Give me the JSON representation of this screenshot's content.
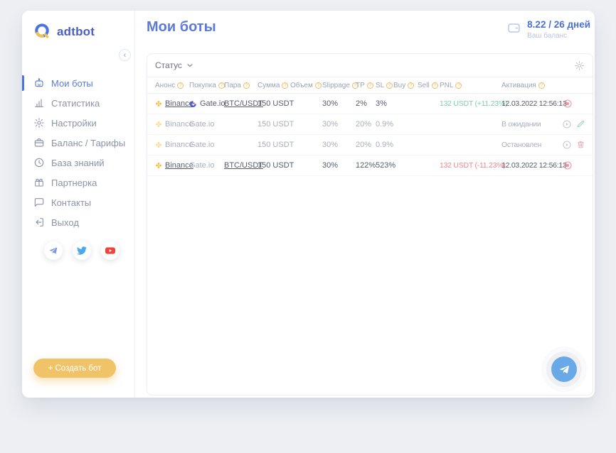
{
  "sidebar": {
    "logo_text": "adtbot",
    "items": [
      {
        "id": "my-bots",
        "label": "Мои боты",
        "icon": "bot-icon",
        "active": true
      },
      {
        "id": "statistics",
        "label": "Статистика",
        "icon": "chart-icon",
        "active": false
      },
      {
        "id": "settings",
        "label": "Настройки",
        "icon": "gear-icon",
        "active": false
      },
      {
        "id": "balance-tariffs",
        "label": "Баланс / Тарифы",
        "icon": "wallet-icon",
        "active": false
      },
      {
        "id": "knowledge-base",
        "label": "База знаний",
        "icon": "clock-icon",
        "active": false
      },
      {
        "id": "partnership",
        "label": "Партнерка",
        "icon": "gift-icon",
        "active": false
      },
      {
        "id": "contacts",
        "label": "Контакты",
        "icon": "chat-icon",
        "active": false
      },
      {
        "id": "logout",
        "label": "Выход",
        "icon": "logout-icon",
        "active": false
      }
    ],
    "socials": [
      {
        "id": "telegram",
        "icon": "telegram-icon",
        "color": "#8095e0"
      },
      {
        "id": "twitter",
        "icon": "twitter-icon",
        "color": "#4da7ea"
      },
      {
        "id": "youtube",
        "icon": "youtube-icon",
        "color": "#f0433c"
      }
    ],
    "create_button_label": "+ Создать бот"
  },
  "header": {
    "title": "Мои боты",
    "balance_value": "8.22 / 26 дней",
    "balance_label": "Ваш баланс"
  },
  "table": {
    "filter_label": "Статус",
    "columns": [
      "Анонс",
      "Покупка",
      "Пара",
      "Сумма",
      "Объем",
      "Slippage",
      "TP",
      "SL",
      "Buy",
      "Sell",
      "PNL",
      "Активация"
    ],
    "rows": [
      {
        "announce": "Binance",
        "announce_logo": "binance-icon",
        "announce_underline": true,
        "purchase": "Gate.io",
        "purchase_logo": "gateio-icon",
        "purchase_muted": false,
        "pair": "BTC/USDT",
        "pair_underline": true,
        "amount": "150 USDT",
        "volume": "",
        "slippage": "30%",
        "tp": "2%",
        "sl": "3%",
        "buy": "",
        "sell": "",
        "pnl": "132 USDT (+11.23%)",
        "pnl_status": "positive",
        "activation": "12.03.2022 12:56:13",
        "actions": [
          "stop"
        ],
        "muted": false
      },
      {
        "announce": "Binance",
        "announce_logo": "binance-icon",
        "announce_underline": false,
        "purchase": "Gate.io",
        "purchase_logo": null,
        "purchase_muted": true,
        "pair": "",
        "pair_underline": false,
        "amount": "150 USDT",
        "volume": "",
        "slippage": "30%",
        "tp": "20%",
        "sl": "0.9%",
        "buy": "",
        "sell": "",
        "pnl": "",
        "pnl_status": "none",
        "activation": "В ожидании",
        "actions": [
          "play",
          "edit"
        ],
        "muted": true
      },
      {
        "announce": "Binance",
        "announce_logo": "binance-icon",
        "announce_underline": false,
        "purchase": "Gate.io",
        "purchase_logo": null,
        "purchase_muted": true,
        "pair": "",
        "pair_underline": false,
        "amount": "150 USDT",
        "volume": "",
        "slippage": "30%",
        "tp": "20%",
        "sl": "0.9%",
        "buy": "",
        "sell": "",
        "pnl": "",
        "pnl_status": "none",
        "activation": "Остановлен",
        "actions": [
          "play",
          "delete"
        ],
        "muted": true
      },
      {
        "announce": "Binance",
        "announce_logo": "binance-icon",
        "announce_underline": true,
        "purchase": "Gate.io",
        "purchase_logo": null,
        "purchase_muted": true,
        "pair": "BTC/USDT",
        "pair_underline": true,
        "amount": "150 USDT",
        "volume": "",
        "slippage": "30%",
        "tp": "122%",
        "sl": "523%",
        "buy": "",
        "sell": "",
        "pnl": "132 USDT (-11.23%)",
        "pnl_status": "negative",
        "activation": "12.03.2022 12:56:13",
        "actions": [
          "stop"
        ],
        "muted": false
      }
    ]
  },
  "colors": {
    "accent_blue": "#5b7bdb",
    "accent_yellow": "#f1c368",
    "positive": "#7fd0ad",
    "negative": "#f2858d",
    "binance_orange": "#f3ba2f"
  }
}
